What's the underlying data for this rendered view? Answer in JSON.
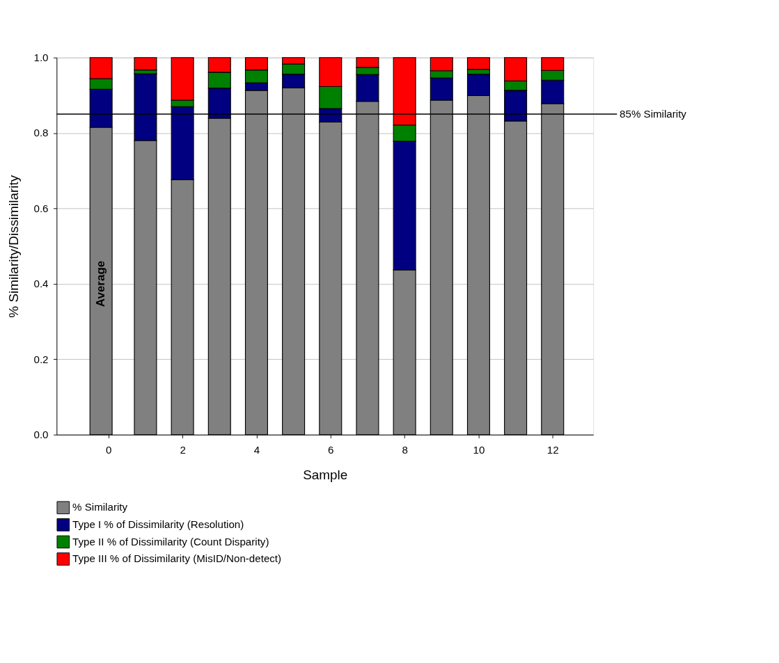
{
  "chart_data": {
    "type": "bar",
    "stacked": true,
    "xlabel": "Sample",
    "ylabel": "% Similarity/Dissimilarity",
    "x": [
      -0.2,
      1,
      2,
      3,
      4,
      5,
      6,
      7,
      8,
      9,
      10,
      11,
      12
    ],
    "series": [
      {
        "name": "% Similarity",
        "color": "#808080",
        "values": [
          0.815,
          0.78,
          0.676,
          0.839,
          0.913,
          0.92,
          0.829,
          0.884,
          0.437,
          0.887,
          0.899,
          0.832,
          0.878
        ]
      },
      {
        "name": "Type I % of Dissimilarity (Resolution)",
        "color": "#000080",
        "values": [
          0.101,
          0.177,
          0.194,
          0.08,
          0.02,
          0.036,
          0.036,
          0.071,
          0.341,
          0.059,
          0.057,
          0.081,
          0.062
        ]
      },
      {
        "name": "Type II % of Dissimilarity (Count Disparity)",
        "color": "#008000",
        "values": [
          0.028,
          0.01,
          0.017,
          0.042,
          0.034,
          0.027,
          0.058,
          0.019,
          0.043,
          0.019,
          0.013,
          0.025,
          0.026
        ]
      },
      {
        "name": "Type III % of Dissimilarity (MisID/Non-detect)",
        "color": "#ff0000",
        "values": [
          0.056,
          0.033,
          0.113,
          0.039,
          0.033,
          0.017,
          0.077,
          0.026,
          0.179,
          0.035,
          0.031,
          0.062,
          0.034
        ]
      }
    ],
    "xlim": [
      -1.4,
      13.1
    ],
    "xticks": [
      0,
      2,
      4,
      6,
      8,
      10,
      12
    ],
    "ylim": [
      0,
      1
    ],
    "yticks": [
      {
        "value": 0,
        "label": "0.0"
      },
      {
        "value": 0.2,
        "label": "0.2"
      },
      {
        "value": 0.4,
        "label": "0.4"
      },
      {
        "value": 0.6,
        "label": "0.6"
      },
      {
        "value": 0.8,
        "label": "0.8"
      },
      {
        "value": 1,
        "label": "1.0"
      }
    ],
    "ref_lines": [
      {
        "axis": "y",
        "value": 0.85,
        "label": "85% Similarity",
        "color": "#000000"
      }
    ],
    "annotations": [
      "Average"
    ],
    "grid": "y",
    "legend": "bottom"
  }
}
